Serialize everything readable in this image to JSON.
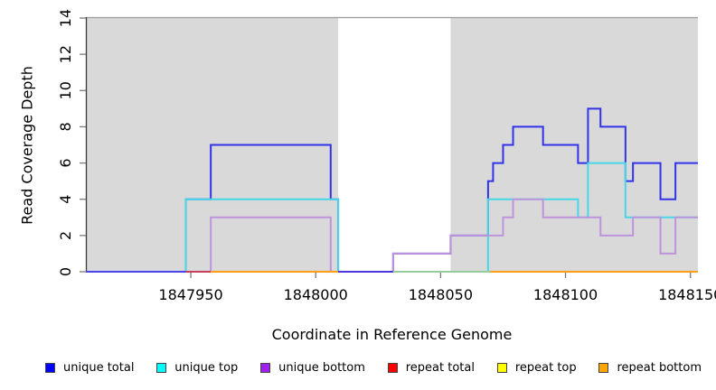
{
  "chart_data": {
    "type": "line",
    "subtype": "step-coverage",
    "title": "",
    "xlabel": "Coordinate in Reference Genome",
    "ylabel": "Read Coverage Depth",
    "x_range": [
      1847908,
      1848153
    ],
    "y_range": [
      0,
      14
    ],
    "x_ticks": [
      1847950,
      1848000,
      1848050,
      1848100,
      1848150
    ],
    "y_ticks": [
      0,
      2,
      4,
      6,
      8,
      10,
      12,
      14
    ],
    "grid": false,
    "legend_position": "bottom",
    "plot_background": "#ffffff",
    "shaded_regions": [
      {
        "x0": 1847908,
        "x1": 1848009,
        "color": "#d9d9d9"
      },
      {
        "x0": 1848054,
        "x1": 1848153,
        "color": "#d9d9d9"
      }
    ],
    "series": [
      {
        "name": "unique total",
        "legend_color": "#0000ff",
        "line_color": "#3232e8",
        "steps": [
          [
            1847908,
            0
          ],
          [
            1847948,
            4
          ],
          [
            1847958,
            7
          ],
          [
            1848006,
            4
          ],
          [
            1848009,
            0
          ],
          [
            1848031,
            1
          ],
          [
            1848054,
            2
          ],
          [
            1848069,
            5
          ],
          [
            1848071,
            6
          ],
          [
            1848075,
            7
          ],
          [
            1848079,
            8
          ],
          [
            1848091,
            7
          ],
          [
            1848105,
            6
          ],
          [
            1848109,
            9
          ],
          [
            1848114,
            8
          ],
          [
            1848124,
            5
          ],
          [
            1848127,
            6
          ],
          [
            1848138,
            4
          ],
          [
            1848144,
            6
          ]
        ]
      },
      {
        "name": "unique top",
        "legend_color": "#00ffff",
        "line_color": "#46d7e8",
        "steps": [
          [
            1847908,
            0
          ],
          [
            1847948,
            4
          ],
          [
            1848009,
            0
          ],
          [
            1848069,
            4
          ],
          [
            1848105,
            3
          ],
          [
            1848109,
            6
          ],
          [
            1848124,
            3
          ]
        ]
      },
      {
        "name": "unique bottom",
        "legend_color": "#a020f0",
        "line_color": "#bd93dc",
        "steps": [
          [
            1847908,
            0
          ],
          [
            1847958,
            3
          ],
          [
            1848006,
            0
          ],
          [
            1848031,
            1
          ],
          [
            1848054,
            2
          ],
          [
            1848075,
            3
          ],
          [
            1848079,
            4
          ],
          [
            1848091,
            3
          ],
          [
            1848114,
            2
          ],
          [
            1848127,
            3
          ],
          [
            1848138,
            1
          ],
          [
            1848144,
            3
          ]
        ]
      },
      {
        "name": "repeat total",
        "legend_color": "#ff0000",
        "line_color": "#c8405a",
        "steps": [
          [
            1847908,
            0
          ]
        ]
      },
      {
        "name": "repeat top",
        "legend_color": "#ffff00",
        "line_color": "#e8e84a",
        "steps": [
          [
            1847908,
            0
          ]
        ]
      },
      {
        "name": "repeat bottom",
        "legend_color": "#ffa500",
        "line_color": "#ff9e19",
        "steps": [
          [
            1847908,
            0
          ]
        ]
      }
    ],
    "baseline_segments": [
      {
        "x0": 1847908,
        "x1": 1847948,
        "color": "#4a45e8"
      },
      {
        "x0": 1847948,
        "x1": 1847958,
        "color": "#c8405a"
      },
      {
        "x0": 1847958,
        "x1": 1848009,
        "color": "#ff9e19"
      },
      {
        "x0": 1848009,
        "x1": 1848031,
        "color": "#4a35e0"
      },
      {
        "x0": 1848031,
        "x1": 1848070,
        "color": "#97cd9b"
      },
      {
        "x0": 1848070,
        "x1": 1848153,
        "color": "#ff9e19"
      }
    ]
  }
}
